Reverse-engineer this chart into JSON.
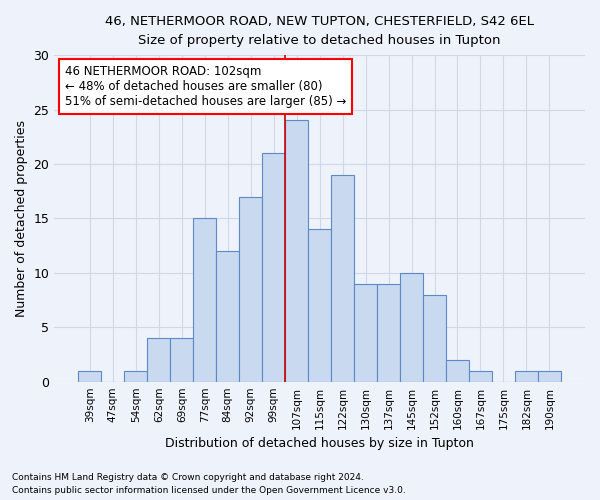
{
  "title_line1": "46, NETHERMOOR ROAD, NEW TUPTON, CHESTERFIELD, S42 6EL",
  "title_line2": "Size of property relative to detached houses in Tupton",
  "xlabel": "Distribution of detached houses by size in Tupton",
  "ylabel": "Number of detached properties",
  "bar_labels": [
    "39sqm",
    "47sqm",
    "54sqm",
    "62sqm",
    "69sqm",
    "77sqm",
    "84sqm",
    "92sqm",
    "99sqm",
    "107sqm",
    "115sqm",
    "122sqm",
    "130sqm",
    "137sqm",
    "145sqm",
    "152sqm",
    "160sqm",
    "167sqm",
    "175sqm",
    "182sqm",
    "190sqm"
  ],
  "bar_values": [
    1,
    0,
    1,
    4,
    4,
    15,
    12,
    17,
    21,
    24,
    14,
    19,
    9,
    9,
    10,
    8,
    2,
    1,
    0,
    1,
    1
  ],
  "bar_color": "#c9d9f0",
  "bar_edge_color": "#5b8ac7",
  "red_line_bin": 9,
  "annotation_text": "46 NETHERMOOR ROAD: 102sqm\n← 48% of detached houses are smaller (80)\n51% of semi-detached houses are larger (85) →",
  "annotation_box_color": "white",
  "annotation_box_edge": "red",
  "red_line_color": "#cc0000",
  "ylim": [
    0,
    30
  ],
  "yticks": [
    0,
    5,
    10,
    15,
    20,
    25,
    30
  ],
  "grid_color": "#d0d8e8",
  "background_color": "#eef2fa",
  "footer_line1": "Contains HM Land Registry data © Crown copyright and database right 2024.",
  "footer_line2": "Contains public sector information licensed under the Open Government Licence v3.0."
}
